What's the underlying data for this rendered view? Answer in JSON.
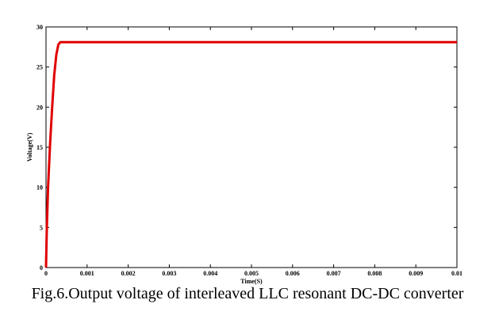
{
  "caption": "Fig.6.Output voltage of interleaved LLC resonant DC-DC converter",
  "chart_data": {
    "type": "line",
    "xlabel": "Time(S)",
    "ylabel": "Voltage(V)",
    "xlim": [
      0,
      0.01
    ],
    "ylim": [
      0,
      30
    ],
    "x_ticks": [
      0,
      0.001,
      0.002,
      0.003,
      0.004,
      0.005,
      0.006,
      0.007,
      0.008,
      0.009,
      0.01
    ],
    "x_tick_labels": [
      "0",
      "0.001",
      "0.002",
      "0.003",
      "0.004",
      "0.005",
      "0.006",
      "0.007",
      "0.008",
      "0.009",
      "0.01"
    ],
    "y_ticks": [
      0,
      5,
      10,
      15,
      20,
      25,
      30
    ],
    "y_tick_labels": [
      "0",
      "5",
      "10",
      "15",
      "20",
      "25",
      "30"
    ],
    "grid": false,
    "line_color": "#e00000",
    "series": [
      {
        "x": [
          0,
          2e-05,
          5e-05,
          0.0001,
          0.00015,
          0.0002,
          0.00025,
          0.0003,
          0.00035,
          0.0005,
          0.001,
          0.002,
          0.003,
          0.004,
          0.005,
          0.006,
          0.007,
          0.008,
          0.009,
          0.01
        ],
        "y": [
          0,
          5,
          10,
          15.5,
          20,
          24,
          26.5,
          27.8,
          28.1,
          28.1,
          28.1,
          28.1,
          28.1,
          28.1,
          28.1,
          28.1,
          28.1,
          28.1,
          28.1,
          28.1
        ]
      }
    ]
  }
}
